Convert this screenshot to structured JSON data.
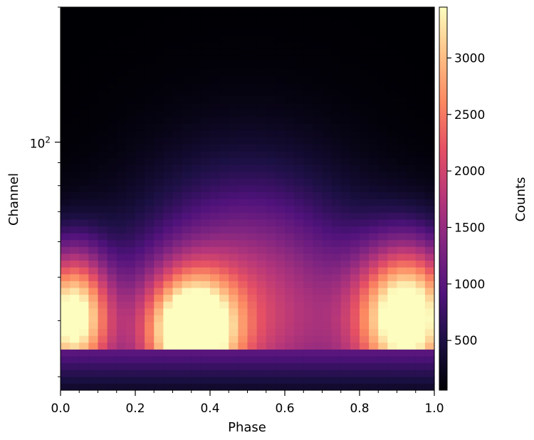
{
  "chart_data": {
    "type": "heatmap",
    "title": "",
    "xlabel": "Phase",
    "ylabel": "Channel",
    "colorbar_label": "Counts",
    "colormap": "magma",
    "x_range": [
      0.0,
      1.0
    ],
    "y_range": [
      28,
      200
    ],
    "y_scale": "log",
    "x_ticks": [
      0.0,
      0.2,
      0.4,
      0.6,
      0.8,
      1.0
    ],
    "x_tick_labels": [
      "0.0",
      "0.2",
      "0.4",
      "0.6",
      "0.8",
      "1.0"
    ],
    "y_major_ticks": [
      100
    ],
    "y_major_tick_labels": [
      "10"
    ],
    "y_major_tick_exponents": [
      "2"
    ],
    "y_minor_ticks": [
      30,
      40,
      50,
      60,
      70,
      80,
      90,
      200
    ],
    "colorbar_range": [
      60,
      3450
    ],
    "colorbar_ticks": [
      500,
      1000,
      1500,
      2000,
      2500,
      3000
    ],
    "colorbar_tick_labels": [
      "500",
      "1000",
      "1500",
      "2000",
      "2500",
      "3000"
    ],
    "n_phase_bins": 40,
    "n_channel_bins": 56,
    "components": [
      {
        "phase": 0.93,
        "channel": 41,
        "amplitude": 3350,
        "phase_width": 0.095,
        "channel_log_width": 0.11
      },
      {
        "phase": 0.35,
        "channel": 38,
        "amplitude": 3050,
        "phase_width": 0.085,
        "channel_log_width": 0.09
      },
      {
        "phase": 0.03,
        "channel": 41,
        "amplitude": 3150,
        "phase_width": 0.07,
        "channel_log_width": 0.1
      },
      {
        "phase": 0.5,
        "channel": 50,
        "amplitude": 1200,
        "phase_width": 0.2,
        "channel_log_width": 0.18
      },
      {
        "phase": 0.5,
        "channel": 36,
        "amplitude": 900,
        "phase_width": 0.5,
        "channel_log_width": 0.15
      }
    ],
    "low_channel_floor": 300
  }
}
